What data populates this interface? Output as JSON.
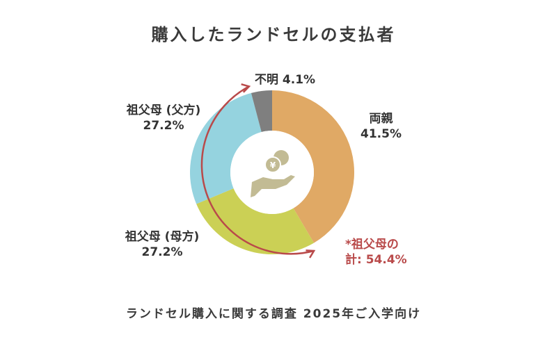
{
  "title": "購入したランドセルの支払者",
  "footer": "ランドセル購入に関する調査 2025年ご入学向け",
  "chart_data": {
    "type": "pie",
    "style": "donut",
    "title": "購入したランドセルの支払者",
    "categories": [
      "両親",
      "祖父母 (母方)",
      "祖父母 (父方)",
      "不明"
    ],
    "values": [
      41.5,
      27.2,
      27.2,
      4.1
    ],
    "value_labels": [
      "41.5%",
      "27.2%",
      "27.2%",
      "4.1%"
    ],
    "colors": [
      "#e0a965",
      "#cbd055",
      "#95d3df",
      "#7f7f7f"
    ],
    "start": "top, clockwise",
    "annotation": {
      "line1": "*祖父母の",
      "line2": "計: 54.4%",
      "color": "#b94a4a"
    },
    "center_icon": "hand-with-yen-coins-icon"
  }
}
